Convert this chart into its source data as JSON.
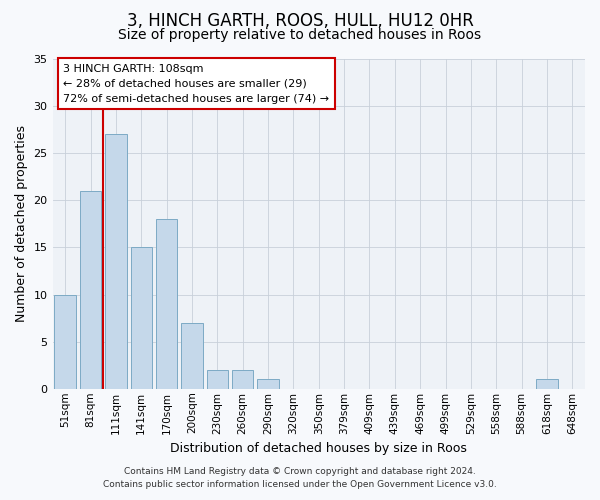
{
  "title": "3, HINCH GARTH, ROOS, HULL, HU12 0HR",
  "subtitle": "Size of property relative to detached houses in Roos",
  "xlabel": "Distribution of detached houses by size in Roos",
  "ylabel": "Number of detached properties",
  "bar_labels": [
    "51sqm",
    "81sqm",
    "111sqm",
    "141sqm",
    "170sqm",
    "200sqm",
    "230sqm",
    "260sqm",
    "290sqm",
    "320sqm",
    "350sqm",
    "379sqm",
    "409sqm",
    "439sqm",
    "469sqm",
    "499sqm",
    "529sqm",
    "558sqm",
    "588sqm",
    "618sqm",
    "648sqm"
  ],
  "bar_values": [
    10,
    21,
    27,
    15,
    18,
    7,
    2,
    2,
    1,
    0,
    0,
    0,
    0,
    0,
    0,
    0,
    0,
    0,
    0,
    1,
    0
  ],
  "bar_color": "#c5d8ea",
  "bar_edgecolor": "#7daac5",
  "vline_pos": 1.5,
  "vline_color": "#cc0000",
  "ylim": [
    0,
    35
  ],
  "yticks": [
    0,
    5,
    10,
    15,
    20,
    25,
    30,
    35
  ],
  "annotation_title": "3 HINCH GARTH: 108sqm",
  "annotation_line1": "← 28% of detached houses are smaller (29)",
  "annotation_line2": "72% of semi-detached houses are larger (74) →",
  "annotation_box_facecolor": "#ffffff",
  "annotation_box_edgecolor": "#cc0000",
  "footer_line1": "Contains HM Land Registry data © Crown copyright and database right 2024.",
  "footer_line2": "Contains public sector information licensed under the Open Government Licence v3.0.",
  "plot_bg_color": "#eef2f7",
  "fig_bg_color": "#f7f9fc",
  "grid_color": "#c8d0da",
  "title_fontsize": 12,
  "subtitle_fontsize": 10,
  "ylabel_fontsize": 9,
  "xlabel_fontsize": 9,
  "tick_fontsize": 8,
  "annot_fontsize": 8,
  "footer_fontsize": 6.5
}
